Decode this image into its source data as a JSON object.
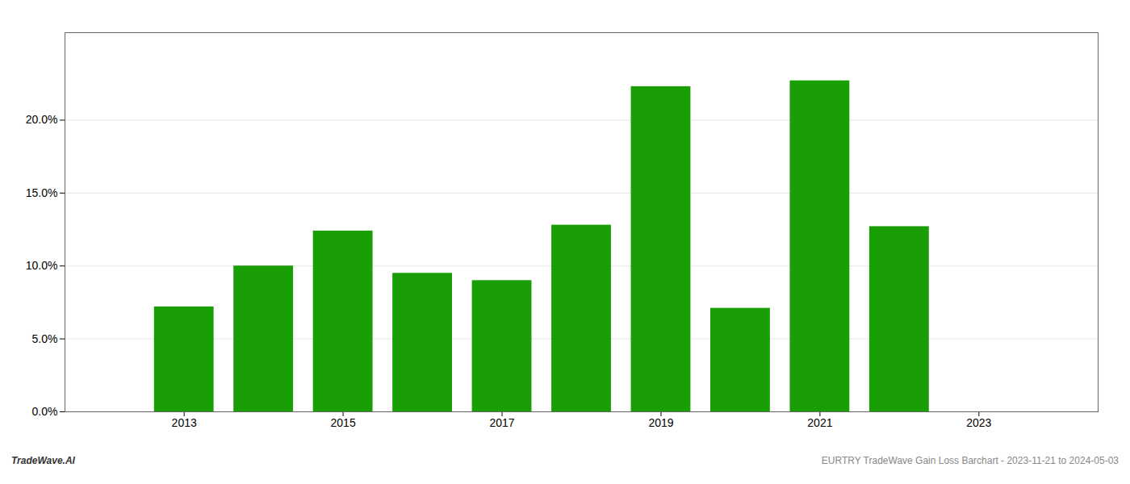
{
  "chart_data": {
    "type": "bar",
    "x": [
      2013,
      2014,
      2015,
      2016,
      2017,
      2018,
      2019,
      2020,
      2021,
      2022
    ],
    "values": [
      0.072,
      0.1,
      0.124,
      0.095,
      0.09,
      0.128,
      0.223,
      0.071,
      0.227,
      0.127
    ],
    "color": "#1a9e06",
    "xlim": [
      2011.5,
      2024.5
    ],
    "xticks": [
      2013,
      2015,
      2017,
      2019,
      2021,
      2023
    ],
    "ylim": [
      0.0,
      0.26
    ],
    "yticks": [
      {
        "value": 0.0,
        "label": "0.0%"
      },
      {
        "value": 0.05,
        "label": "5.0%"
      },
      {
        "value": 0.1,
        "label": "10.0%"
      },
      {
        "value": 0.15,
        "label": "15.0%"
      },
      {
        "value": 0.2,
        "label": "20.0%"
      }
    ],
    "grid": true,
    "annotations": [
      "TradeWave.AI",
      "EURTRY TradeWave Gain Loss Barchart - 2023-11-21 to 2024-05-03"
    ]
  }
}
